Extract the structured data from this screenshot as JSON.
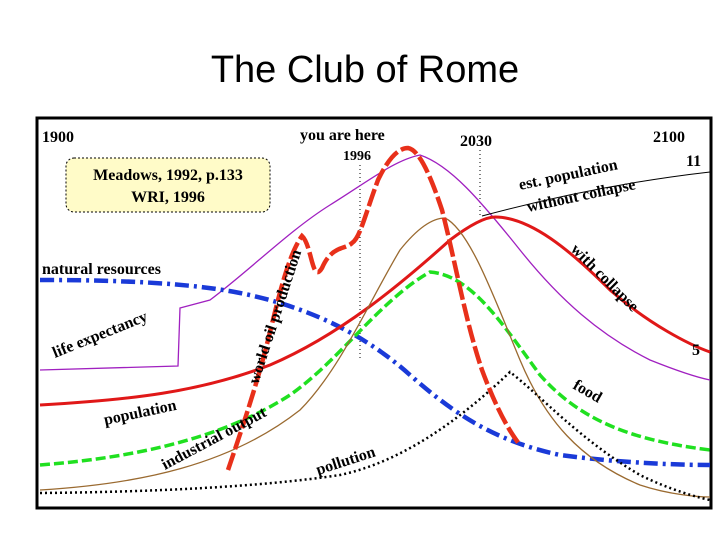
{
  "title": "The Club of Rome",
  "figure": {
    "labels": {
      "start_year": "1900",
      "you_are_here": "you are here",
      "year_1996": "1996",
      "year_2030": "2030",
      "end_year": "2100",
      "top_right_value": "11",
      "est_population": "est. population",
      "without_collapse": "without collapse",
      "source_1": "Meadows, 1992, p.133",
      "source_2": "WRI, 1996",
      "natural_resources": "natural resources",
      "life_expectancy": "life expectancy",
      "world_oil_production": "world oil production",
      "with_collapse": "with collapse",
      "bottom_right_value": "5",
      "population": "population",
      "industrial_output": "industrial output",
      "food": "food",
      "pollution": "pollution"
    }
  }
}
